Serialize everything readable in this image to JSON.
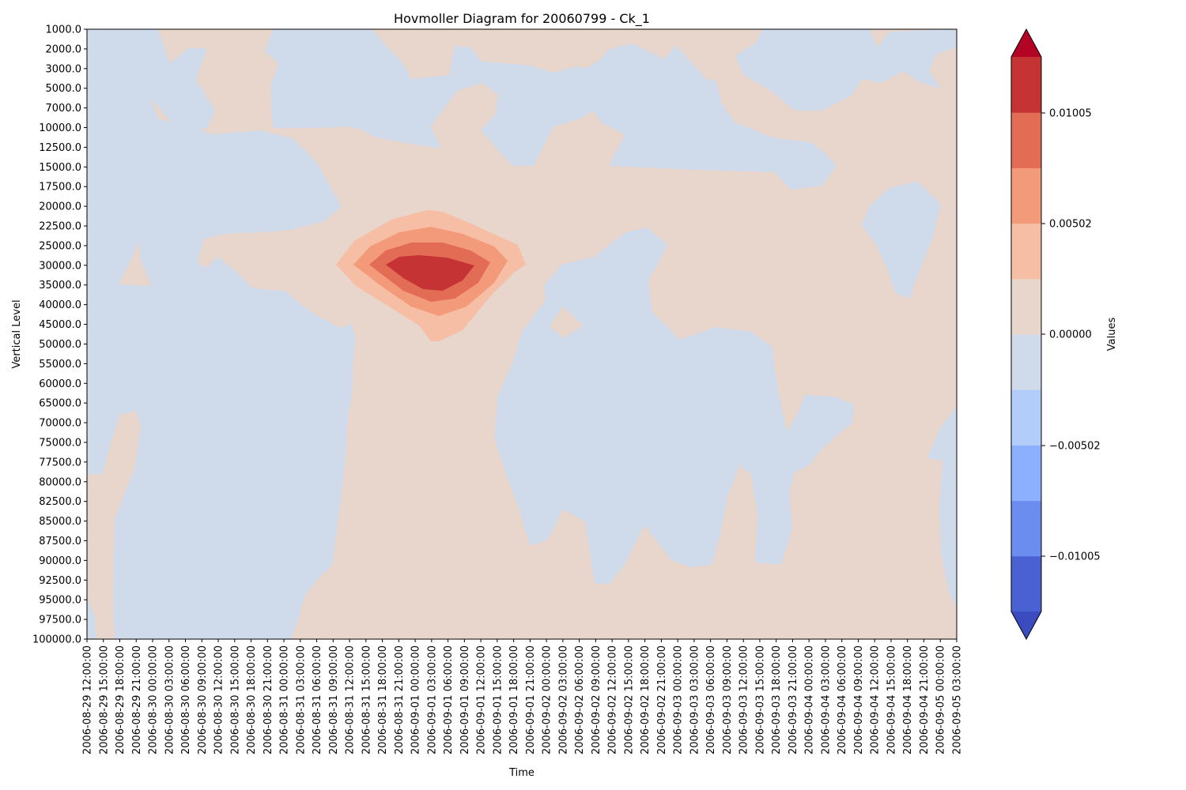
{
  "chart_data": {
    "type": "heatmap",
    "title": "Hovmoller Diagram for 20060799 - Ck_1",
    "xlabel": "Time",
    "ylabel": "Vertical Level",
    "colorbar_label": "Values",
    "colormap": "coolwarm",
    "y_inverted": true,
    "x_ticks": [
      "2006-08-29 12:00:00",
      "2006-08-29 15:00:00",
      "2006-08-29 18:00:00",
      "2006-08-29 21:00:00",
      "2006-08-30 00:00:00",
      "2006-08-30 03:00:00",
      "2006-08-30 06:00:00",
      "2006-08-30 09:00:00",
      "2006-08-30 12:00:00",
      "2006-08-30 15:00:00",
      "2006-08-30 18:00:00",
      "2006-08-30 21:00:00",
      "2006-08-31 00:00:00",
      "2006-08-31 03:00:00",
      "2006-08-31 06:00:00",
      "2006-08-31 09:00:00",
      "2006-08-31 12:00:00",
      "2006-08-31 15:00:00",
      "2006-08-31 18:00:00",
      "2006-08-31 21:00:00",
      "2006-09-01 00:00:00",
      "2006-09-01 03:00:00",
      "2006-09-01 06:00:00",
      "2006-09-01 09:00:00",
      "2006-09-01 12:00:00",
      "2006-09-01 15:00:00",
      "2006-09-01 18:00:00",
      "2006-09-01 21:00:00",
      "2006-09-02 00:00:00",
      "2006-09-02 03:00:00",
      "2006-09-02 06:00:00",
      "2006-09-02 09:00:00",
      "2006-09-02 12:00:00",
      "2006-09-02 15:00:00",
      "2006-09-02 18:00:00",
      "2006-09-02 21:00:00",
      "2006-09-03 00:00:00",
      "2006-09-03 03:00:00",
      "2006-09-03 06:00:00",
      "2006-09-03 09:00:00",
      "2006-09-03 12:00:00",
      "2006-09-03 15:00:00",
      "2006-09-03 18:00:00",
      "2006-09-03 21:00:00",
      "2006-09-04 00:00:00",
      "2006-09-04 03:00:00",
      "2006-09-04 06:00:00",
      "2006-09-04 09:00:00",
      "2006-09-04 12:00:00",
      "2006-09-04 15:00:00",
      "2006-09-04 18:00:00",
      "2006-09-04 21:00:00",
      "2006-09-05 00:00:00",
      "2006-09-05 03:00:00"
    ],
    "y_ticks": [
      "1000.0",
      "2000.0",
      "3000.0",
      "5000.0",
      "7000.0",
      "10000.0",
      "12500.0",
      "15000.0",
      "17500.0",
      "20000.0",
      "22500.0",
      "25000.0",
      "30000.0",
      "35000.0",
      "40000.0",
      "45000.0",
      "50000.0",
      "55000.0",
      "60000.0",
      "65000.0",
      "70000.0",
      "75000.0",
      "77500.0",
      "80000.0",
      "82500.0",
      "85000.0",
      "87500.0",
      "90000.0",
      "92500.0",
      "95000.0",
      "97500.0",
      "100000.0"
    ],
    "colorbar_ticks": [
      "0.01005",
      "0.00502",
      "0.00000",
      "−0.00502",
      "−0.01005"
    ],
    "color_levels": [
      {
        "range": "< -0.01256",
        "color": "#3b4cc0"
      },
      {
        "range": "-0.01256 .. -0.01005",
        "color": "#4961d2"
      },
      {
        "range": "-0.01005 .. -0.00754",
        "color": "#6b8df0"
      },
      {
        "range": "-0.00754 .. -0.00502",
        "color": "#8db0fe"
      },
      {
        "range": "-0.00502 .. -0.00251",
        "color": "#b3cdfb"
      },
      {
        "range": "-0.00251 .. 0.00000",
        "color": "#cfdaea"
      },
      {
        "range": "0.00000 .. 0.00251",
        "color": "#e8d6cc"
      },
      {
        "range": "0.00251 .. 0.00502",
        "color": "#f6bea4"
      },
      {
        "range": "0.00502 .. 0.00754",
        "color": "#f39a7b"
      },
      {
        "range": "0.00754 .. 0.01005",
        "color": "#e36c55"
      },
      {
        "range": "0.01005 .. 0.01256",
        "color": "#c53334"
      },
      {
        "range": "> 0.01256",
        "color": "#b40426"
      }
    ],
    "features": [
      {
        "sign": "positive",
        "time_center": "2006-09-01 03:00:00",
        "level_center": "30000.0",
        "peak_value": 0.011
      },
      {
        "sign": "positive",
        "time_span": [
          "2006-08-31 09:00:00",
          "2006-09-02 00:00:00"
        ],
        "level_span": [
          "10000.0",
          "100000.0"
        ]
      },
      {
        "sign": "negative",
        "time_span": [
          "2006-08-29 15:00:00",
          "2006-08-31 09:00:00"
        ],
        "level_span": [
          "35000.0",
          "100000.0"
        ]
      },
      {
        "sign": "negative",
        "time_span": [
          "2006-09-01 15:00:00",
          "2006-09-04 15:00:00"
        ],
        "level_span": [
          "25000.0",
          "92500.0"
        ]
      }
    ]
  }
}
